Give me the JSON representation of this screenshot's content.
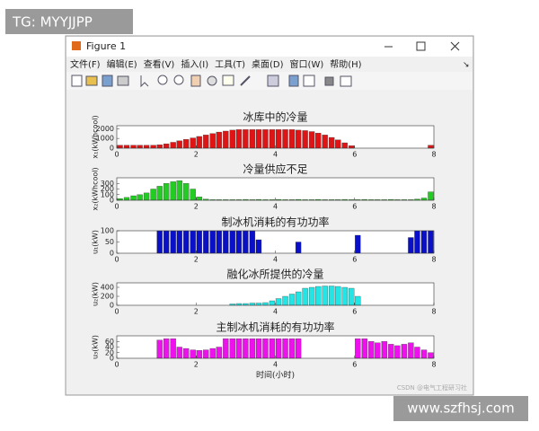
{
  "watermark": "TG: MYYJJPP",
  "window": {
    "title": "Figure 1",
    "menu": [
      "文件(F)",
      "编辑(E)",
      "查看(V)",
      "插入(I)",
      "工具(T)",
      "桌面(D)",
      "窗口(W)",
      "帮助(H)"
    ]
  },
  "chart_data": [
    {
      "type": "bar",
      "title": "冰库中的冷量",
      "ylabel": "x₁(kWhcool)",
      "color": "#e01414",
      "x": [
        0.08,
        0.25,
        0.42,
        0.58,
        0.75,
        0.92,
        1.08,
        1.25,
        1.42,
        1.58,
        1.75,
        1.92,
        2.08,
        2.25,
        2.42,
        2.58,
        2.75,
        2.92,
        3.08,
        3.25,
        3.42,
        3.58,
        3.75,
        3.92,
        4.08,
        4.25,
        4.42,
        4.58,
        4.75,
        4.92,
        5.08,
        5.25,
        5.42,
        5.58,
        5.75,
        5.92,
        6.08,
        6.25,
        6.42,
        6.58,
        6.75,
        6.92,
        7.08,
        7.25,
        7.42,
        7.58,
        7.75,
        7.92
      ],
      "values": [
        300,
        300,
        300,
        300,
        300,
        300,
        350,
        450,
        600,
        750,
        900,
        1050,
        1200,
        1350,
        1500,
        1650,
        1750,
        1850,
        1900,
        1900,
        1900,
        1900,
        1900,
        1900,
        1900,
        1900,
        1900,
        1850,
        1800,
        1700,
        1550,
        1350,
        1100,
        850,
        550,
        250,
        0,
        0,
        0,
        0,
        0,
        0,
        0,
        0,
        0,
        0,
        0,
        300
      ],
      "xlim": [
        0,
        8
      ],
      "xticks": [
        0,
        2,
        4,
        6,
        8
      ],
      "ylim": [
        0,
        2300
      ],
      "yticks": [
        0,
        1000,
        2000
      ]
    },
    {
      "type": "bar",
      "title": "冷量供应不足",
      "ylabel": "x₂(kWhcool)",
      "color": "#22cc22",
      "x": [
        0.08,
        0.25,
        0.42,
        0.58,
        0.75,
        0.92,
        1.08,
        1.25,
        1.42,
        1.58,
        1.75,
        1.92,
        2.08,
        2.25,
        2.42,
        2.58,
        2.75,
        2.92,
        3.08,
        3.25,
        3.42,
        3.58,
        3.75,
        3.92,
        4.08,
        4.25,
        4.42,
        4.58,
        4.75,
        4.92,
        5.08,
        5.25,
        5.42,
        5.58,
        5.75,
        5.92,
        6.08,
        6.25,
        6.42,
        6.58,
        6.75,
        6.92,
        7.08,
        7.25,
        7.42,
        7.58,
        7.75,
        7.92
      ],
      "values": [
        30,
        50,
        80,
        100,
        130,
        200,
        250,
        300,
        330,
        350,
        300,
        200,
        60,
        20,
        10,
        10,
        10,
        10,
        10,
        15,
        10,
        15,
        10,
        10,
        15,
        10,
        10,
        15,
        10,
        10,
        15,
        10,
        10,
        10,
        15,
        10,
        10,
        15,
        10,
        10,
        10,
        15,
        10,
        10,
        10,
        20,
        40,
        150
      ],
      "xlim": [
        0,
        8
      ],
      "xticks": [
        0,
        2,
        4,
        6,
        8
      ],
      "ylim": [
        0,
        400
      ],
      "yticks": [
        0,
        100,
        200,
        300
      ]
    },
    {
      "type": "bar",
      "title": "制冰机消耗的有功功率",
      "ylabel": "u₁(kW)",
      "color": "#0a10c8",
      "x": [
        0.08,
        0.25,
        0.42,
        0.58,
        0.75,
        0.92,
        1.08,
        1.25,
        1.42,
        1.58,
        1.75,
        1.92,
        2.08,
        2.25,
        2.42,
        2.58,
        2.75,
        2.92,
        3.08,
        3.25,
        3.42,
        3.58,
        3.75,
        3.92,
        4.08,
        4.25,
        4.42,
        4.58,
        4.75,
        4.92,
        5.08,
        5.25,
        5.42,
        5.58,
        5.75,
        5.92,
        6.08,
        6.25,
        6.42,
        6.58,
        6.75,
        6.92,
        7.08,
        7.25,
        7.42,
        7.58,
        7.75,
        7.92
      ],
      "values": [
        0,
        0,
        0,
        0,
        0,
        0,
        100,
        100,
        100,
        100,
        100,
        100,
        100,
        100,
        100,
        100,
        100,
        100,
        100,
        100,
        100,
        60,
        0,
        0,
        0,
        0,
        0,
        50,
        0,
        0,
        0,
        0,
        0,
        0,
        0,
        0,
        80,
        0,
        0,
        0,
        0,
        0,
        0,
        0,
        70,
        100,
        100,
        100
      ],
      "xlim": [
        0,
        8
      ],
      "xticks": [
        0,
        2,
        4,
        6,
        8
      ],
      "ylim": [
        0,
        100
      ],
      "yticks": [
        0,
        50,
        100
      ]
    },
    {
      "type": "bar",
      "title": "融化冰所提供的冷量",
      "ylabel": "u₂(kW)",
      "color": "#22e6e6",
      "x": [
        0.08,
        0.25,
        0.42,
        0.58,
        0.75,
        0.92,
        1.08,
        1.25,
        1.42,
        1.58,
        1.75,
        1.92,
        2.08,
        2.25,
        2.42,
        2.58,
        2.75,
        2.92,
        3.08,
        3.25,
        3.42,
        3.58,
        3.75,
        3.92,
        4.08,
        4.25,
        4.42,
        4.58,
        4.75,
        4.92,
        5.08,
        5.25,
        5.42,
        5.58,
        5.75,
        5.92,
        6.08,
        6.25,
        6.42,
        6.58,
        6.75,
        6.92,
        7.08,
        7.25,
        7.42,
        7.58,
        7.75,
        7.92
      ],
      "values": [
        0,
        0,
        0,
        0,
        0,
        0,
        0,
        0,
        0,
        0,
        0,
        0,
        0,
        0,
        0,
        0,
        0,
        30,
        40,
        40,
        50,
        50,
        60,
        100,
        150,
        200,
        250,
        300,
        380,
        400,
        420,
        430,
        430,
        420,
        400,
        380,
        200,
        0,
        0,
        0,
        0,
        0,
        0,
        0,
        0,
        0,
        0,
        0
      ],
      "xlim": [
        0,
        8
      ],
      "xticks": [
        0,
        2,
        4,
        6,
        8
      ],
      "ylim": [
        0,
        500
      ],
      "yticks": [
        0,
        200,
        400
      ]
    },
    {
      "type": "bar",
      "title": "主制冰机消耗的有功功率",
      "ylabel": "u₃(kW)",
      "xlabel": "时间(小时)",
      "color": "#ee11ee",
      "x": [
        0.08,
        0.25,
        0.42,
        0.58,
        0.75,
        0.92,
        1.08,
        1.25,
        1.42,
        1.58,
        1.75,
        1.92,
        2.08,
        2.25,
        2.42,
        2.58,
        2.75,
        2.92,
        3.08,
        3.25,
        3.42,
        3.58,
        3.75,
        3.92,
        4.08,
        4.25,
        4.42,
        4.58,
        4.75,
        4.92,
        5.08,
        5.25,
        5.42,
        5.58,
        5.75,
        5.92,
        6.08,
        6.25,
        6.42,
        6.58,
        6.75,
        6.92,
        7.08,
        7.25,
        7.42,
        7.58,
        7.75,
        7.92
      ],
      "values": [
        0,
        0,
        0,
        0,
        0,
        0,
        65,
        70,
        70,
        40,
        35,
        30,
        28,
        30,
        35,
        40,
        70,
        70,
        70,
        70,
        70,
        70,
        70,
        70,
        70,
        70,
        70,
        70,
        0,
        0,
        0,
        0,
        0,
        0,
        0,
        0,
        70,
        70,
        60,
        55,
        60,
        50,
        45,
        50,
        55,
        40,
        30,
        20
      ],
      "xlim": [
        0,
        8
      ],
      "xticks": [
        0,
        2,
        4,
        6,
        8
      ],
      "ylim": [
        0,
        80
      ],
      "yticks": [
        0,
        20,
        40,
        60
      ]
    }
  ],
  "credit": "CSDN @电气工程研习社",
  "site": "www.szfhsj.com"
}
